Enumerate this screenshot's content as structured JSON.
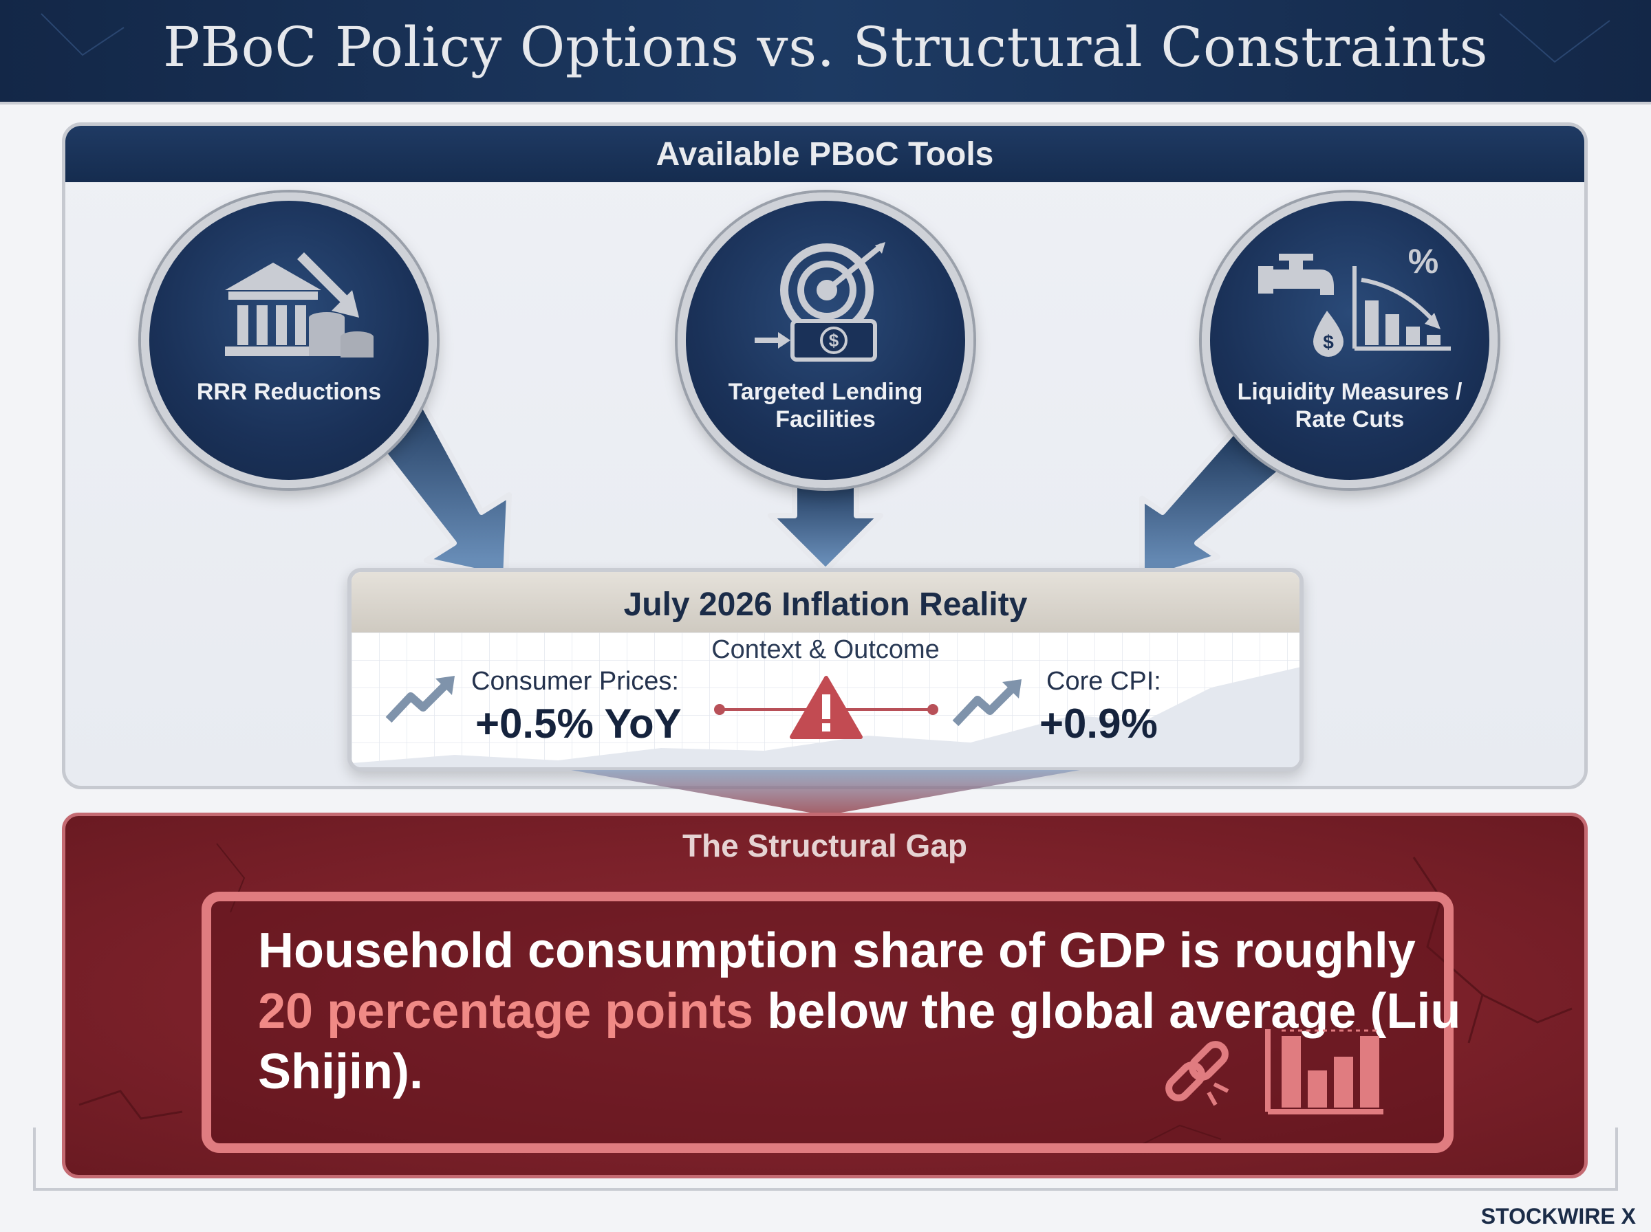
{
  "header": {
    "title": "PBoC Policy Options vs. Structural Constraints"
  },
  "tools": {
    "title": "Available PBoC Tools",
    "items": [
      {
        "label": "RRR Reductions",
        "icon": "bank-down-arrow-coins-icon"
      },
      {
        "label_line1": "Targeted Lending",
        "label_line2": "Facilities",
        "icon": "target-arrow-money-icon"
      },
      {
        "label_line1": "Liquidity Measures /",
        "label_line2": "Rate Cuts",
        "icon": "faucet-percent-chart-icon"
      }
    ]
  },
  "inflation": {
    "title": "July 2026 Inflation Reality",
    "subtitle": "Context & Outcome",
    "consumer_label": "Consumer Prices:",
    "consumer_value": "+0.5% YoY",
    "core_label": "Core CPI:",
    "core_value": "+0.9%",
    "warning_icon": "warning-triangle-icon"
  },
  "gap": {
    "title": "The Structural Gap",
    "text_before": "Household consumption share of GDP is roughly ",
    "highlight": "20 percentage points",
    "text_after": " below the global average (Liu Shijin).",
    "icons": [
      "broken-link-icon",
      "bar-chart-icon"
    ]
  },
  "brand": "STOCKWIRE X",
  "colors": {
    "navy": "#1a3158",
    "maroon": "#7a2029",
    "highlight": "#f08a86",
    "silver": "#cfd2d8"
  }
}
